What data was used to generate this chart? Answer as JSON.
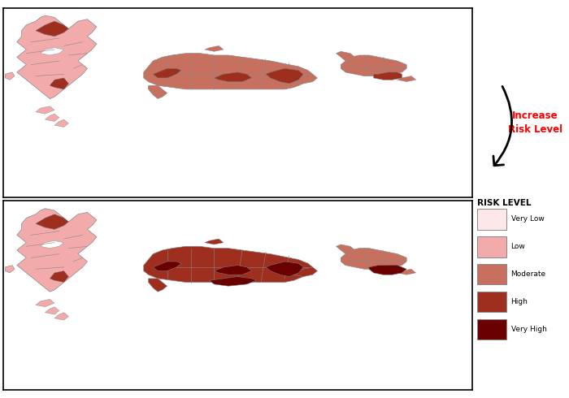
{
  "background_color": "#ffffff",
  "border_color": "#000000",
  "district_line_color": "#888888",
  "arrow_text": "Increase\nRisk Level",
  "arrow_text_color": "#ff0000",
  "legend_title": "RISK LEVEL",
  "legend_items": [
    "Very Low",
    "Low",
    "Moderate",
    "High",
    "Very High"
  ],
  "legend_colors": [
    "#fce8e8",
    "#f2aaaa",
    "#c87060",
    "#9e2e1e",
    "#6b0000"
  ],
  "upper_colors": {
    "island1_base": "#f2aaaa",
    "island1_high": "#9e2e1e",
    "island2_base": "#c87060",
    "island2_high": "#9e2e1e",
    "island3_base": "#c87060",
    "island3_high": "#9e2e1e"
  },
  "lower_colors": {
    "island1_base": "#f2aaaa",
    "island1_high": "#9e2e1e",
    "island2_base": "#9e2e1e",
    "island2_high": "#6b0000",
    "island3_base": "#c87060",
    "island3_high": "#6b0000"
  }
}
